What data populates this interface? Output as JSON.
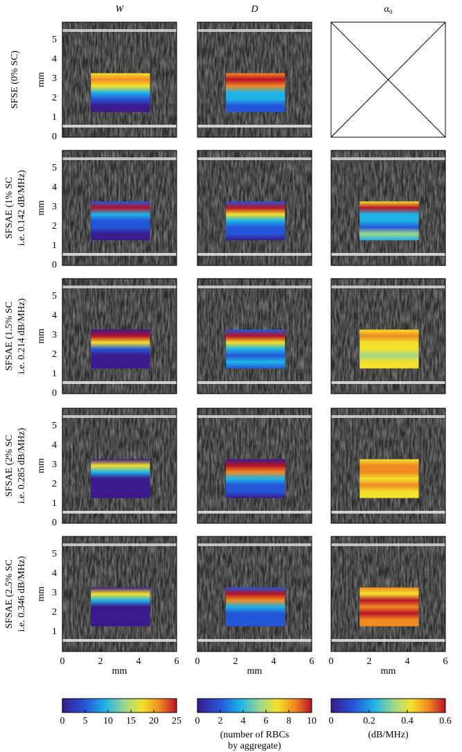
{
  "figure": {
    "columns": [
      {
        "label": "W"
      },
      {
        "label": "D"
      },
      {
        "label": "α₀"
      }
    ],
    "rows": [
      {
        "label": [
          "SFSE  (0% SC)"
        ],
        "y_label": "mm",
        "yticks": [
          0,
          1,
          2,
          3,
          4,
          5
        ]
      },
      {
        "label": [
          "SFSAE  (1% SC",
          "i.e. 0.142 dB/MHz)"
        ],
        "y_label": "mm",
        "yticks": [
          0,
          1,
          2,
          3,
          4,
          5
        ]
      },
      {
        "label": [
          "SFSAE  (1.5% SC",
          "i.e. 0.214 dB/MHz)"
        ],
        "y_label": "mm",
        "yticks": [
          0,
          1,
          2,
          3,
          4,
          5
        ]
      },
      {
        "label": [
          "SFSAE  (2% SC",
          "i.e. 0.285 dB/MHz)"
        ],
        "y_label": "mm",
        "yticks": [
          0,
          1,
          2,
          3,
          4,
          5
        ]
      },
      {
        "label": [
          "SFSAE (2.5% SC",
          "i.e. 0.346 dB/MHz)"
        ],
        "y_label": "mm",
        "yticks": [
          1,
          2,
          3,
          4,
          5
        ]
      }
    ],
    "x_axis": {
      "label": "mm",
      "ticks": [
        0,
        2,
        4,
        6
      ]
    },
    "colorbars": [
      {
        "ticks": [
          0,
          5,
          10,
          15,
          20,
          25
        ]
      },
      {
        "ticks": [
          0,
          2,
          4,
          6,
          8,
          10
        ],
        "label": [
          "(number of RBCs",
          "by aggregate)"
        ]
      },
      {
        "ticks": [
          0,
          0.2,
          0.4,
          0.6
        ],
        "label": [
          "(dB/MHz)"
        ]
      }
    ]
  }
}
